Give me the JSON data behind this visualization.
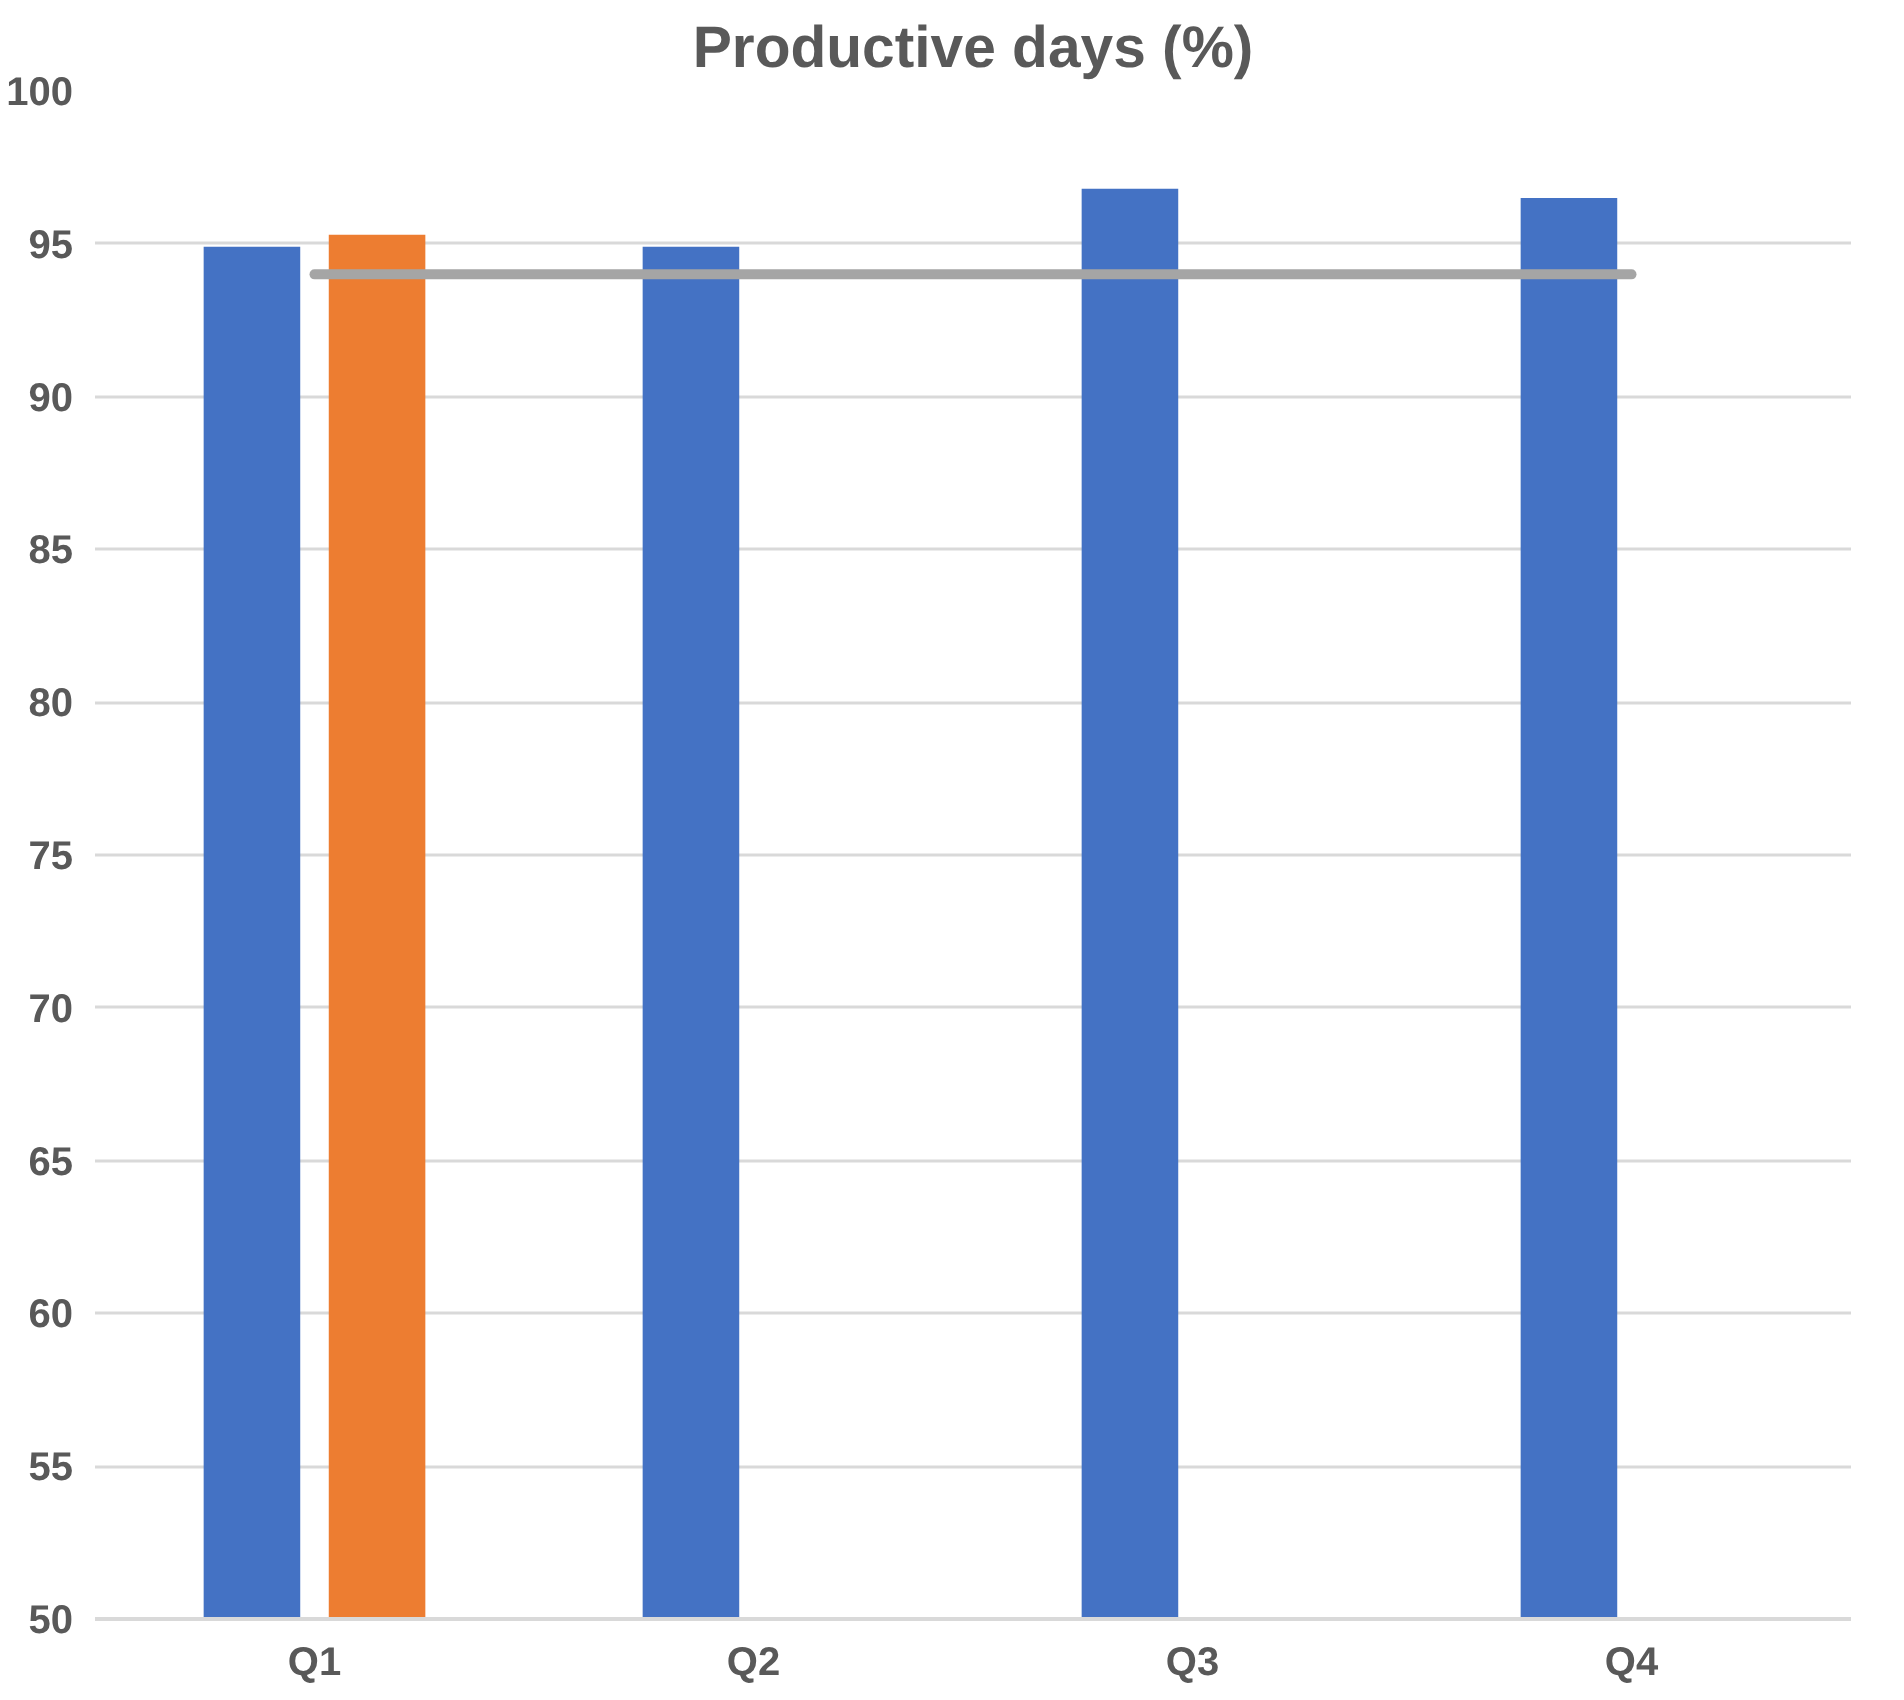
{
  "chart_data": {
    "type": "bar",
    "title": "Productive days (%)",
    "categories": [
      "Q1",
      "Q2",
      "Q3",
      "Q4"
    ],
    "series": [
      {
        "color": "#4472c4",
        "values": [
          94.9,
          94.9,
          96.8,
          96.5
        ]
      },
      {
        "color": "#ed7d31",
        "values": [
          95.3,
          null,
          null,
          null
        ]
      },
      {
        "type": "line",
        "color": "#a5a5a5",
        "values": [
          94,
          94,
          94,
          94
        ]
      }
    ],
    "ylim": [
      50,
      100
    ],
    "yticks": [
      50,
      55,
      60,
      65,
      70,
      75,
      80,
      85,
      90,
      95,
      100
    ],
    "grid": "y"
  }
}
